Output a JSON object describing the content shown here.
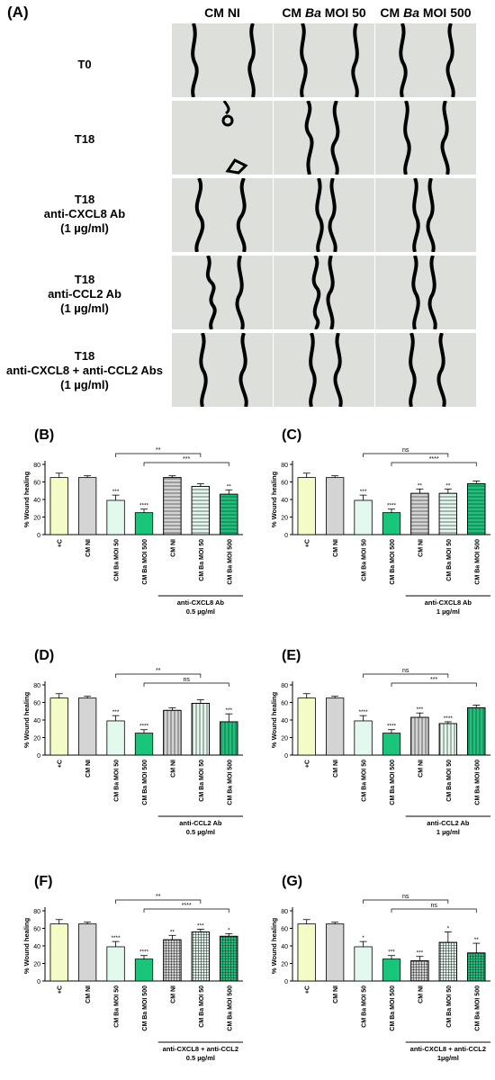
{
  "panel_a": {
    "label": "(A)",
    "columns": [
      {
        "prefix": "CM NI",
        "italic": "",
        "suffix": ""
      },
      {
        "prefix": "CM ",
        "italic": "Ba",
        "suffix": " MOI 50"
      },
      {
        "prefix": "CM ",
        "italic": "Ba",
        "suffix": " MOI 500"
      }
    ],
    "rows": [
      {
        "lines": [
          "T0"
        ]
      },
      {
        "lines": [
          "T18"
        ]
      },
      {
        "lines": [
          "T18",
          "anti-CXCL8 Ab",
          "(1 µg/ml)"
        ]
      },
      {
        "lines": [
          "T18",
          "anti-CCL2 Ab",
          "(1 µg/ml)"
        ]
      },
      {
        "lines": [
          "T18",
          "anti-CXCL8 + anti-CCL2 Abs",
          "(1 µg/ml)"
        ]
      }
    ]
  },
  "chart_data": [
    {
      "panel": "(B)",
      "type": "bar",
      "ylabel": "% Wound healing",
      "ylim": [
        0,
        80
      ],
      "yticks": [
        0,
        20,
        40,
        60,
        80
      ],
      "categories": [
        "+C",
        "CM NI",
        "CM Ba MOI 50",
        "CM Ba MOI 500",
        "CM NI",
        "CM Ba MOI 50",
        "CM Ba MOI 500"
      ],
      "values": [
        65,
        65,
        39,
        25,
        65,
        55,
        46
      ],
      "errors": [
        5,
        2,
        6,
        4,
        2,
        3,
        5
      ],
      "fills": [
        "#f5fbc6",
        "#d4d4d4",
        "#e3f9ee",
        "#19c57a",
        "#d4d4d4",
        "#e3f9ee",
        "#19c57a"
      ],
      "patterns": [
        "solid",
        "solid",
        "solid",
        "solid",
        "hlines",
        "hlines",
        "hlines"
      ],
      "stars": [
        "",
        "",
        "***",
        "****",
        "",
        "",
        "**"
      ],
      "brackets": [
        {
          "from": 2,
          "to": 5,
          "label": "**"
        },
        {
          "from": 3,
          "to": 6,
          "label": "***"
        }
      ],
      "group_label": [
        "anti-CXCL8 Ab",
        "0.5 µg/ml"
      ],
      "group_from": 4
    },
    {
      "panel": "(C)",
      "type": "bar",
      "ylabel": "% Wound healing",
      "ylim": [
        0,
        80
      ],
      "yticks": [
        0,
        20,
        40,
        60,
        80
      ],
      "categories": [
        "+C",
        "CM NI",
        "CM Ba MOI 50",
        "CM Ba MOI 500",
        "CM NI",
        "CM Ba MOI 50",
        "CM Ba MOI 500"
      ],
      "values": [
        65,
        65,
        39,
        25,
        47,
        47,
        58
      ],
      "errors": [
        5,
        2,
        6,
        4,
        5,
        5,
        3
      ],
      "fills": [
        "#f5fbc6",
        "#d4d4d4",
        "#e3f9ee",
        "#19c57a",
        "#d4d4d4",
        "#e3f9ee",
        "#19c57a"
      ],
      "patterns": [
        "solid",
        "solid",
        "solid",
        "solid",
        "hlines",
        "hlines",
        "hlines"
      ],
      "stars": [
        "",
        "",
        "***",
        "****",
        "**",
        "**",
        ""
      ],
      "brackets": [
        {
          "from": 2,
          "to": 5,
          "label": "ns"
        },
        {
          "from": 3,
          "to": 6,
          "label": "****"
        }
      ],
      "group_label": [
        "anti-CXCL8 Ab",
        "1 µg/ml"
      ],
      "group_from": 4
    },
    {
      "panel": "(D)",
      "type": "bar",
      "ylabel": "% Wound healing",
      "ylim": [
        0,
        80
      ],
      "yticks": [
        0,
        20,
        40,
        60,
        80
      ],
      "categories": [
        "+C",
        "CM NI",
        "CM Ba MOI 50",
        "CM Ba MOI 500",
        "CM NI",
        "CM Ba MOI 50",
        "CM Ba MOI 500"
      ],
      "values": [
        65,
        65,
        39,
        25,
        51,
        59,
        38
      ],
      "errors": [
        5,
        2,
        6,
        4,
        3,
        4,
        9
      ],
      "fills": [
        "#f5fbc6",
        "#d4d4d4",
        "#e3f9ee",
        "#19c57a",
        "#d4d4d4",
        "#e3f9ee",
        "#19c57a"
      ],
      "patterns": [
        "solid",
        "solid",
        "solid",
        "solid",
        "vlines",
        "vlines",
        "vlines"
      ],
      "stars": [
        "",
        "",
        "***",
        "****",
        "",
        "",
        "***"
      ],
      "brackets": [
        {
          "from": 2,
          "to": 5,
          "label": "**"
        },
        {
          "from": 3,
          "to": 6,
          "label": "ns"
        }
      ],
      "group_label": [
        "anti-CCL2 Ab",
        "0.5 µg/ml"
      ],
      "group_from": 4
    },
    {
      "panel": "(E)",
      "type": "bar",
      "ylabel": "% Wound healing",
      "ylim": [
        0,
        80
      ],
      "yticks": [
        0,
        20,
        40,
        60,
        80
      ],
      "categories": [
        "+C",
        "CM NI",
        "CM Ba MOI 50",
        "CM Ba MOI 500",
        "CM NI",
        "CM Ba MOI 50",
        "CM Ba MOI 500"
      ],
      "values": [
        65,
        65,
        39,
        25,
        43,
        36,
        54
      ],
      "errors": [
        5,
        2,
        6,
        4,
        5,
        2,
        3
      ],
      "fills": [
        "#f5fbc6",
        "#d4d4d4",
        "#e3f9ee",
        "#19c57a",
        "#d4d4d4",
        "#e3f9ee",
        "#19c57a"
      ],
      "patterns": [
        "solid",
        "solid",
        "solid",
        "solid",
        "vlines",
        "vlines",
        "vlines"
      ],
      "stars": [
        "",
        "",
        "****",
        "****",
        "***",
        "****",
        ""
      ],
      "brackets": [
        {
          "from": 2,
          "to": 5,
          "label": "ns"
        },
        {
          "from": 3,
          "to": 6,
          "label": "***"
        }
      ],
      "group_label": [
        "anti-CCL2 Ab",
        "1 µg/ml"
      ],
      "group_from": 4
    },
    {
      "panel": "(F)",
      "type": "bar",
      "ylabel": "% Wound healing",
      "ylim": [
        0,
        80
      ],
      "yticks": [
        0,
        20,
        40,
        60,
        80
      ],
      "categories": [
        "+C",
        "CM NI",
        "CM Ba MOI 50",
        "CM Ba MOI 500",
        "CM NI",
        "CM Ba MOI 50",
        "CM Ba MOI 500"
      ],
      "values": [
        65,
        65,
        39,
        25,
        47,
        56,
        51
      ],
      "errors": [
        5,
        2,
        6,
        4,
        5,
        3,
        3
      ],
      "fills": [
        "#f5fbc6",
        "#d4d4d4",
        "#e3f9ee",
        "#19c57a",
        "#d4d4d4",
        "#e3f9ee",
        "#19c57a"
      ],
      "patterns": [
        "solid",
        "solid",
        "solid",
        "solid",
        "grid",
        "grid",
        "grid"
      ],
      "stars": [
        "",
        "",
        "****",
        "****",
        "**",
        "***",
        "*"
      ],
      "brackets": [
        {
          "from": 2,
          "to": 5,
          "label": "**"
        },
        {
          "from": 3,
          "to": 6,
          "label": "****"
        }
      ],
      "group_label": [
        "anti-CXCL8 + anti-CCL2",
        "0.5 µg/ml"
      ],
      "group_from": 4
    },
    {
      "panel": "(G)",
      "type": "bar",
      "ylabel": "% Wound healing",
      "ylim": [
        0,
        80
      ],
      "yticks": [
        0,
        20,
        40,
        60,
        80
      ],
      "categories": [
        "+C",
        "CM NI",
        "CM Ba MOI 50",
        "CM Ba MOI 500",
        "CM NI",
        "CM Ba MOI 50",
        "CM Ba MOI 500"
      ],
      "values": [
        65,
        65,
        39,
        25,
        23,
        44,
        32
      ],
      "errors": [
        5,
        2,
        6,
        4,
        5,
        12,
        11
      ],
      "fills": [
        "#f5fbc6",
        "#d4d4d4",
        "#e3f9ee",
        "#19c57a",
        "#d4d4d4",
        "#e3f9ee",
        "#19c57a"
      ],
      "patterns": [
        "solid",
        "solid",
        "solid",
        "solid",
        "grid",
        "grid",
        "grid"
      ],
      "stars": [
        "",
        "",
        "*",
        "***",
        "***",
        "*",
        "**"
      ],
      "brackets": [
        {
          "from": 2,
          "to": 5,
          "label": "ns"
        },
        {
          "from": 3,
          "to": 6,
          "label": "ns"
        }
      ],
      "group_label": [
        "anti-CXCL8 + anti-CCL2",
        "1µg/ml"
      ],
      "group_from": 4
    }
  ]
}
